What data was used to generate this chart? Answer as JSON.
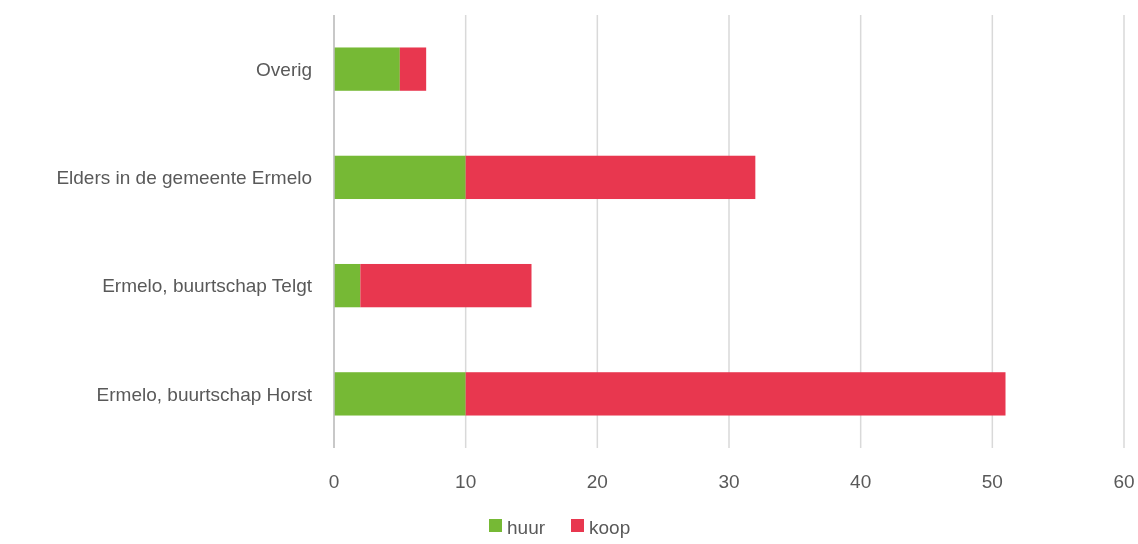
{
  "chart_data": {
    "type": "bar",
    "orientation": "horizontal",
    "stacked": true,
    "categories": [
      "Overig",
      "Elders in de gemeente Ermelo",
      "Ermelo, buurtschap Telgt",
      "Ermelo, buurtschap Horst"
    ],
    "series": [
      {
        "name": "huur",
        "color": "#76b935",
        "values": [
          5,
          10,
          2,
          10
        ]
      },
      {
        "name": "koop",
        "color": "#e8374f",
        "values": [
          2,
          22,
          13,
          41
        ]
      }
    ],
    "xlim": [
      0,
      60
    ],
    "xticks": [
      0,
      10,
      20,
      30,
      40,
      50,
      60
    ],
    "grid": "x",
    "legend": "bottom"
  }
}
